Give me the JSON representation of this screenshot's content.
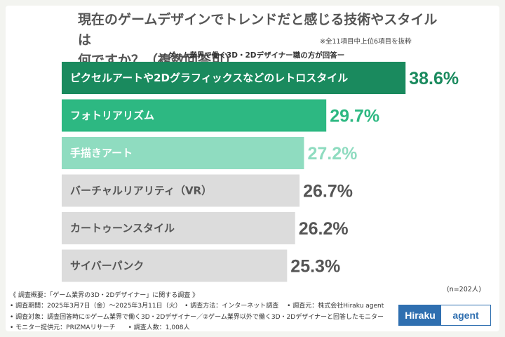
{
  "header": {
    "title_line1": "現在のゲームデザインでトレンドだと感じる技術やスタイルは",
    "title_line2": "何ですか？（複数回答可）",
    "note": "※全11項目中上位6項目を抜粋",
    "subtitle": "ーゲーム業界で働く3D・2Dデザイナー職の方が回答ー"
  },
  "chart_data": {
    "type": "bar",
    "orientation": "horizontal",
    "title": "現在のゲームデザインでトレンドだと感じる技術やスタイルは何ですか？（複数回答可）",
    "unit": "%",
    "xlim": [
      0,
      40
    ],
    "categories": [
      "ピクセルアートや2Dグラフィックスなどのレトロスタイル",
      "フォトリアリズム",
      "手描きアート",
      "バーチャルリアリティ（VR）",
      "カートゥーンスタイル",
      "サイバーパンク"
    ],
    "values": [
      38.6,
      29.7,
      27.2,
      26.7,
      26.2,
      25.3
    ],
    "value_labels": [
      "38.6%",
      "29.7%",
      "27.2%",
      "26.7%",
      "26.2%",
      "25.3%"
    ],
    "bar_colors": [
      "#1a8a5e",
      "#2db882",
      "#8fdcc0",
      "#dcdcdc",
      "#dcdcdc",
      "#dcdcdc"
    ],
    "label_text_colors": [
      "#ffffff",
      "#ffffff",
      "#ffffff",
      "#555555",
      "#555555",
      "#555555"
    ],
    "value_colors": [
      "#1a8a5e",
      "#2db882",
      "#8fdcc0",
      "#555555",
      "#555555",
      "#555555"
    ]
  },
  "footer": {
    "sample_size": "(n=202人)",
    "survey_lines": [
      "《 調査概要：「ゲーム業界の3D・2Dデザイナー」に関する調査 》",
      "• 調査期間：2025年3月7日（金）～2025年3月11日（火）　• 調査方法：インターネット調査　 • 調査元：株式会社Hiraku agent",
      "• 調査対象：調査回答時に①ゲーム業界で働く3D・2Dデザイナー／②ゲーム業界以外で働く3D・2Dデザイナーと回答したモニター",
      "• モニター提供元：PRIZMAリサーチ　　• 調査人数：1,008人"
    ],
    "logo_left": "Hiraku",
    "logo_right": "agent"
  }
}
